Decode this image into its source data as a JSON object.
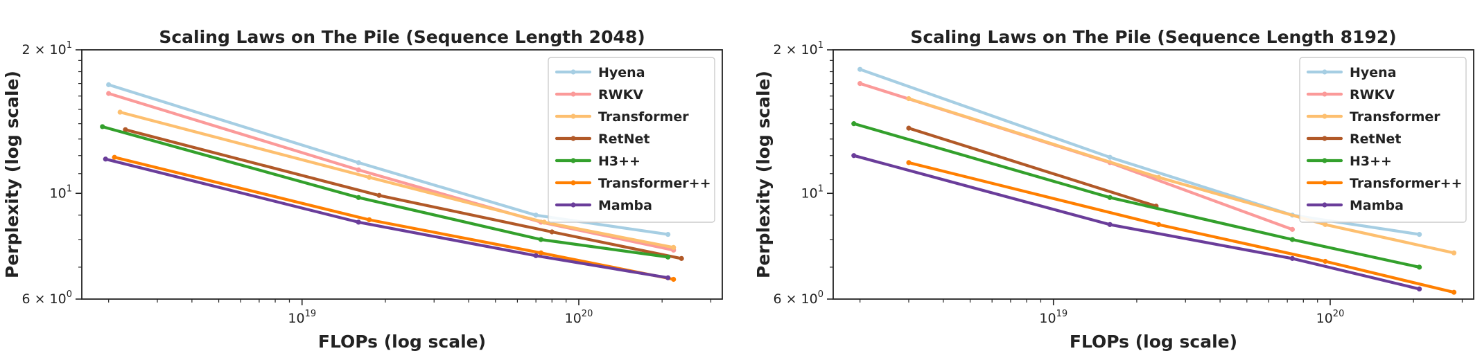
{
  "chart_data": [
    {
      "type": "line",
      "title": "Scaling Laws on The Pile (Sequence Length 2048)",
      "xlabel": "FLOPs (log scale)",
      "ylabel": "Perplexity (log scale)",
      "xscale": "log",
      "yscale": "log",
      "xlim": [
        1.6e+18,
        3.3e+20
      ],
      "ylim": [
        6,
        20
      ],
      "x_ticks": [
        {
          "value": 1e+19,
          "base": "10",
          "exp": "19"
        },
        {
          "value": 1e+20,
          "base": "10",
          "exp": "20"
        }
      ],
      "y_ticks": [
        {
          "value": 6,
          "mant": "6 × 10",
          "exp": "0"
        },
        {
          "value": 10,
          "mant": "10",
          "exp": "1"
        },
        {
          "value": 20,
          "mant": "2 × 10",
          "exp": "1"
        }
      ],
      "grid": false,
      "legend": "top-right",
      "series": [
        {
          "name": "Hyena",
          "color": "#a6cee3",
          "points": [
            [
              2e+18,
              16.9
            ],
            [
              1.6e+19,
              11.6
            ],
            [
              7e+19,
              9.0
            ],
            [
              2.1e+20,
              8.2
            ]
          ]
        },
        {
          "name": "RWKV",
          "color": "#fb9a99",
          "points": [
            [
              2e+18,
              16.2
            ],
            [
              1.6e+19,
              11.2
            ],
            [
              7.3e+19,
              8.7
            ],
            [
              2.2e+20,
              7.6
            ]
          ]
        },
        {
          "name": "Transformer",
          "color": "#fdbf6f",
          "points": [
            [
              2.2e+18,
              14.8
            ],
            [
              1.75e+19,
              10.8
            ],
            [
              7.5e+19,
              8.7
            ],
            [
              2.2e+20,
              7.7
            ]
          ]
        },
        {
          "name": "RetNet",
          "color": "#b15928",
          "points": [
            [
              2.3e+18,
              13.6
            ],
            [
              1.9e+19,
              9.9
            ],
            [
              8e+19,
              8.3
            ],
            [
              2.35e+20,
              7.3
            ]
          ]
        },
        {
          "name": "H3++",
          "color": "#33a02c",
          "points": [
            [
              1.9e+18,
              13.8
            ],
            [
              1.6e+19,
              9.8
            ],
            [
              7.3e+19,
              8.0
            ],
            [
              2.1e+20,
              7.35
            ]
          ]
        },
        {
          "name": "Transformer++",
          "color": "#ff7f00",
          "points": [
            [
              2.1e+18,
              11.9
            ],
            [
              1.75e+19,
              8.8
            ],
            [
              7.3e+19,
              7.5
            ],
            [
              2.2e+20,
              6.6
            ]
          ]
        },
        {
          "name": "Mamba",
          "color": "#6a3d9a",
          "points": [
            [
              1.95e+18,
              11.8
            ],
            [
              1.6e+19,
              8.7
            ],
            [
              7e+19,
              7.4
            ],
            [
              2.1e+20,
              6.65
            ]
          ]
        }
      ]
    },
    {
      "type": "line",
      "title": "Scaling Laws on The Pile (Sequence Length 8192)",
      "xlabel": "FLOPs (log scale)",
      "ylabel": "Perplexity (log scale)",
      "xscale": "log",
      "yscale": "log",
      "xlim": [
        1.6e+18,
        3.3e+20
      ],
      "ylim": [
        6,
        20
      ],
      "x_ticks": [
        {
          "value": 1e+19,
          "base": "10",
          "exp": "19"
        },
        {
          "value": 1e+20,
          "base": "10",
          "exp": "20"
        }
      ],
      "y_ticks": [
        {
          "value": 6,
          "mant": "6 × 10",
          "exp": "0"
        },
        {
          "value": 10,
          "mant": "10",
          "exp": "1"
        },
        {
          "value": 20,
          "mant": "2 × 10",
          "exp": "1"
        }
      ],
      "grid": false,
      "legend": "top-right",
      "series": [
        {
          "name": "Hyena",
          "color": "#a6cee3",
          "points": [
            [
              2e+18,
              18.2
            ],
            [
              1.6e+19,
              11.9
            ],
            [
              7.3e+19,
              9.0
            ],
            [
              2.1e+20,
              8.2
            ]
          ]
        },
        {
          "name": "RWKV",
          "color": "#fb9a99",
          "points": [
            [
              2e+18,
              17.0
            ],
            [
              1.6e+19,
              11.6
            ],
            [
              7.3e+19,
              8.4
            ]
          ]
        },
        {
          "name": "Transformer",
          "color": "#fdbf6f",
          "points": [
            [
              3e+18,
              15.8
            ],
            [
              2.4e+19,
              10.8
            ],
            [
              9.6e+19,
              8.6
            ],
            [
              2.8e+20,
              7.5
            ]
          ]
        },
        {
          "name": "RetNet",
          "color": "#b15928",
          "points": [
            [
              3e+18,
              13.7
            ],
            [
              2.35e+19,
              9.4
            ]
          ]
        },
        {
          "name": "H3++",
          "color": "#33a02c",
          "points": [
            [
              1.9e+18,
              14.0
            ],
            [
              1.6e+19,
              9.8
            ],
            [
              7.3e+19,
              8.0
            ],
            [
              2.1e+20,
              7.0
            ]
          ]
        },
        {
          "name": "Transformer++",
          "color": "#ff7f00",
          "points": [
            [
              3e+18,
              11.6
            ],
            [
              2.4e+19,
              8.6
            ],
            [
              9.6e+19,
              7.2
            ],
            [
              2.8e+20,
              6.2
            ]
          ]
        },
        {
          "name": "Mamba",
          "color": "#6a3d9a",
          "points": [
            [
              1.9e+18,
              12.0
            ],
            [
              1.6e+19,
              8.6
            ],
            [
              7.3e+19,
              7.3
            ],
            [
              2.1e+20,
              6.3
            ]
          ]
        }
      ]
    }
  ]
}
